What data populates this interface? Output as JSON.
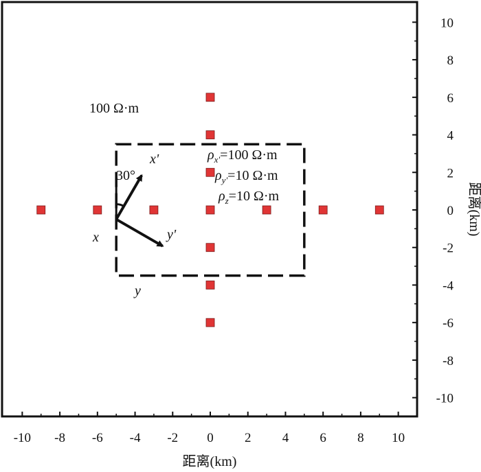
{
  "chart_data": {
    "type": "scatter",
    "xlabel": "距离(km)",
    "ylabel": "距离(km)",
    "xlim": [
      -11,
      11
    ],
    "ylim": [
      -11,
      11
    ],
    "x_ticks": [
      -10,
      -8,
      -6,
      -4,
      -2,
      0,
      2,
      4,
      6,
      8,
      10
    ],
    "y_ticks": [
      -10,
      -8,
      -6,
      -4,
      -2,
      0,
      2,
      4,
      6,
      8,
      10
    ],
    "x_tick_labels": [
      "-10",
      "-8",
      "-6",
      "-4",
      "-2",
      "0",
      "2",
      "4",
      "6",
      "8",
      "10"
    ],
    "y_tick_labels": [
      "-10",
      "-8",
      "-6",
      "-4",
      "-2",
      "0",
      "2",
      "4",
      "6",
      "8",
      "10"
    ],
    "points": [
      {
        "x": -9,
        "y": 0
      },
      {
        "x": -6,
        "y": 0
      },
      {
        "x": -3,
        "y": 0
      },
      {
        "x": 0,
        "y": 0
      },
      {
        "x": 3,
        "y": 0
      },
      {
        "x": 6,
        "y": 0
      },
      {
        "x": 9,
        "y": 0
      },
      {
        "x": 0,
        "y": 6
      },
      {
        "x": 0,
        "y": 4
      },
      {
        "x": 0,
        "y": 2
      },
      {
        "x": 0,
        "y": -2
      },
      {
        "x": 0,
        "y": -4
      },
      {
        "x": 0,
        "y": -6
      }
    ],
    "point_color": "#e03535",
    "anomaly_box": {
      "x_range": [
        -5,
        5
      ],
      "y_range": [
        -3.5,
        3.5
      ]
    },
    "background_label": "100 Ω·m",
    "anomaly_labels": [
      {
        "symbol": "ρ",
        "sub": "x'",
        "value": "=100 Ω·m"
      },
      {
        "symbol": "ρ",
        "sub": "y'",
        "value": "=10 Ω·m"
      },
      {
        "symbol": "ρ",
        "sub": "z",
        "value": "=10 Ω·m"
      }
    ],
    "angle_label": "30°",
    "axis_labels": {
      "x_prime": "x'",
      "y_prime": "y'",
      "x": "x",
      "y": "y"
    }
  }
}
